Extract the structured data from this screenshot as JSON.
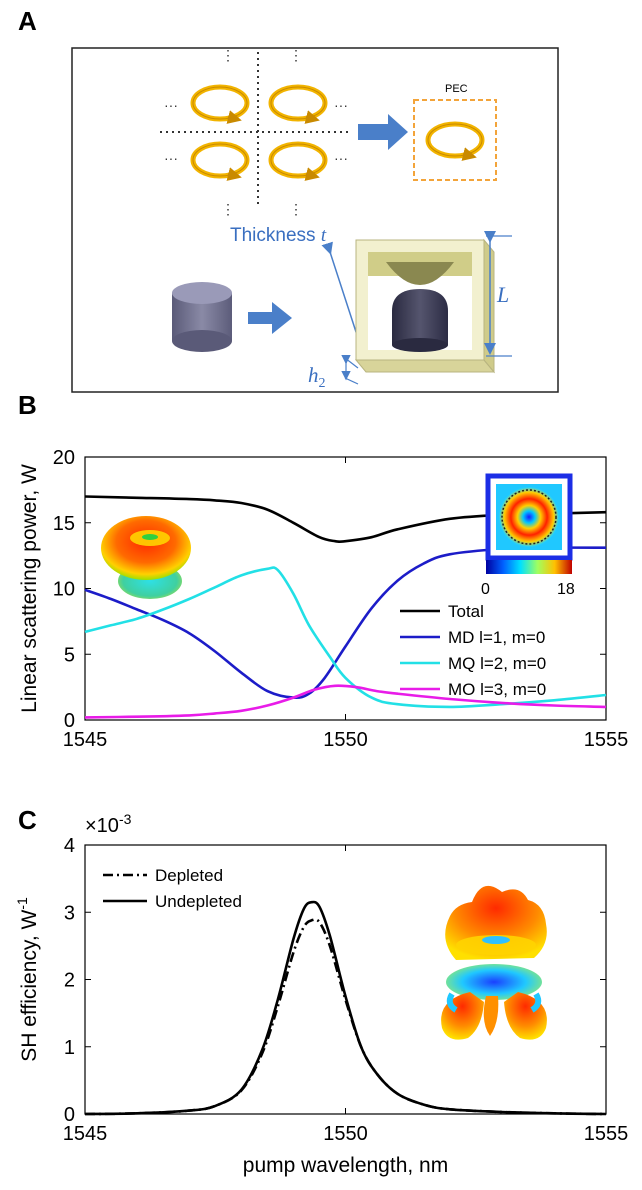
{
  "panels": {
    "a": {
      "letter": "A",
      "pec_label": "PEC",
      "thickness_label": "Thickness",
      "thickness_var": "t",
      "length_var": "L",
      "h_var": "h",
      "h_sub": "2",
      "colors": {
        "ring": "#f2b400",
        "pec_box": "#f3a43a",
        "arrow": "#4a7fc9",
        "cylinder": "#7a7a96",
        "frame": "#e8e6b8"
      }
    },
    "b": {
      "letter": "B",
      "inset_colorbar": {
        "min_label": "0",
        "max_label": "18"
      }
    },
    "c": {
      "letter": "C",
      "exponent_base": "×10",
      "exponent_power": "-3"
    }
  },
  "chart_data": [
    {
      "type": "line",
      "panel": "B",
      "xlabel": "",
      "ylabel": "Linear scattering power, W",
      "xlim": [
        1545,
        1555
      ],
      "ylim": [
        0,
        20
      ],
      "xticks": [
        1545,
        1550,
        1555
      ],
      "yticks": [
        0,
        5,
        10,
        15,
        20
      ],
      "legend_position": "right",
      "series": [
        {
          "name": "Total",
          "color": "#000000",
          "x": [
            1545,
            1546,
            1547,
            1547.5,
            1548,
            1548.5,
            1549,
            1549.5,
            1549.8,
            1550,
            1550.5,
            1551,
            1552,
            1553,
            1554,
            1555
          ],
          "y": [
            17,
            16.9,
            16.8,
            16.7,
            16.5,
            16,
            15,
            13.9,
            13.6,
            13.6,
            13.9,
            14.5,
            15.3,
            15.6,
            15.7,
            15.8
          ]
        },
        {
          "name": "MD l=1, m=0",
          "color": "#1c1cc8",
          "x": [
            1545,
            1545.5,
            1546,
            1546.5,
            1547,
            1547.5,
            1548,
            1548.5,
            1549,
            1549.3,
            1549.6,
            1550,
            1550.5,
            1551,
            1551.5,
            1552,
            1553,
            1554,
            1555
          ],
          "y": [
            9.9,
            9.2,
            8.4,
            7.6,
            6.6,
            5.2,
            3.6,
            2.2,
            1.7,
            2,
            3.2,
            5.6,
            8.5,
            10.6,
            11.9,
            12.6,
            13,
            13.1,
            13.1
          ]
        },
        {
          "name": "MQ l=2, m=0",
          "color": "#22e0e6",
          "x": [
            1545,
            1545.5,
            1546,
            1546.5,
            1547,
            1547.5,
            1548,
            1548.5,
            1548.7,
            1549,
            1549.3,
            1549.7,
            1550,
            1550.5,
            1551,
            1552,
            1553,
            1554,
            1555
          ],
          "y": [
            6.7,
            7.2,
            7.7,
            8.4,
            9.2,
            10.1,
            11,
            11.5,
            11.4,
            9.6,
            7.2,
            4.8,
            3.2,
            1.7,
            1.2,
            1,
            1.2,
            1.5,
            1.9
          ]
        },
        {
          "name": "MO l=3, m=0",
          "color": "#e81ce8",
          "x": [
            1545,
            1546,
            1547,
            1547.5,
            1548,
            1548.5,
            1549,
            1549.4,
            1549.8,
            1550.2,
            1550.6,
            1551,
            1552,
            1553,
            1554,
            1555
          ],
          "y": [
            0.2,
            0.25,
            0.35,
            0.5,
            0.7,
            1.1,
            1.7,
            2.3,
            2.6,
            2.5,
            2.2,
            2,
            1.6,
            1.3,
            1.1,
            1
          ]
        }
      ]
    },
    {
      "type": "line",
      "panel": "C",
      "xlabel": "pump wavelength, nm",
      "ylabel": "SH efficiency, W",
      "ylabel_superscript": "-1",
      "xlim": [
        1545,
        1555
      ],
      "ylim": [
        0,
        4
      ],
      "xticks": [
        1545,
        1550,
        1555
      ],
      "yticks": [
        0,
        1,
        2,
        3,
        4
      ],
      "legend_position": "top-left",
      "series": [
        {
          "name": "Depleted",
          "color": "#000000",
          "dash": "dashdot",
          "x": [
            1545,
            1546,
            1547,
            1547.5,
            1548,
            1548.4,
            1548.7,
            1549,
            1549.2,
            1549.35,
            1549.5,
            1549.7,
            1550,
            1550.3,
            1550.6,
            1551,
            1551.5,
            1552,
            1553,
            1554,
            1555
          ],
          "y": [
            0,
            0.01,
            0.05,
            0.12,
            0.35,
            0.9,
            1.6,
            2.4,
            2.78,
            2.88,
            2.85,
            2.5,
            1.7,
            1.0,
            0.6,
            0.3,
            0.14,
            0.07,
            0.03,
            0.01,
            0
          ]
        },
        {
          "name": "Undepleted",
          "color": "#000000",
          "dash": "solid",
          "x": [
            1545,
            1546,
            1547,
            1547.5,
            1548,
            1548.4,
            1548.7,
            1549,
            1549.2,
            1549.35,
            1549.5,
            1549.7,
            1550,
            1550.3,
            1550.6,
            1551,
            1551.5,
            1552,
            1553,
            1554,
            1555
          ],
          "y": [
            0,
            0.01,
            0.05,
            0.12,
            0.36,
            0.95,
            1.7,
            2.6,
            3.05,
            3.15,
            3.08,
            2.65,
            1.75,
            1.0,
            0.6,
            0.3,
            0.14,
            0.07,
            0.03,
            0.01,
            0
          ]
        }
      ]
    }
  ]
}
